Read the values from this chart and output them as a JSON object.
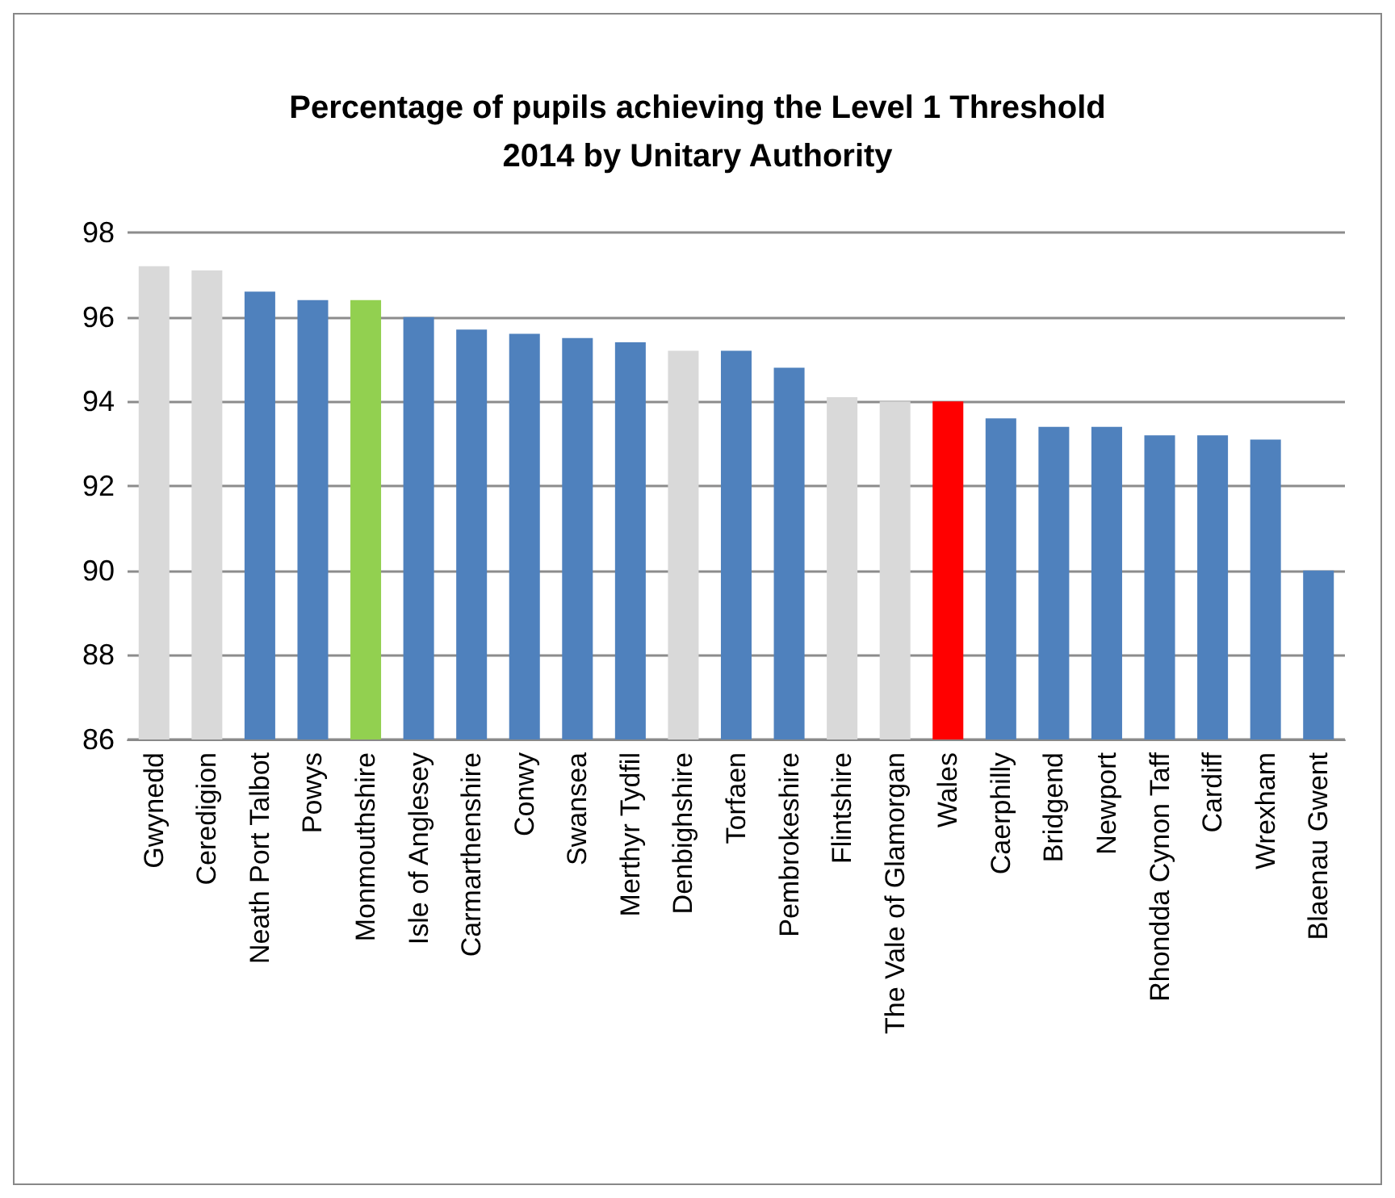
{
  "chart_data": {
    "type": "bar",
    "title": "Percentage of pupils achieving the Level 1 Threshold\n2014 by Unitary Authority",
    "categories": [
      "Gwynedd",
      "Ceredigion",
      "Neath Port Talbot",
      "Powys",
      "Monmouthshire",
      "Isle of Anglesey",
      "Carmarthenshire",
      "Conwy",
      "Swansea",
      "Merthyr Tydfil",
      "Denbighshire",
      "Torfaen",
      "Pembrokeshire",
      "Flintshire",
      "The Vale of Glamorgan",
      "Wales",
      "Caerphilly",
      "Bridgend",
      "Newport",
      "Rhondda Cynon Taff",
      "Cardiff",
      "Wrexham",
      "Blaenau Gwent"
    ],
    "values": [
      97.2,
      97.1,
      96.6,
      96.4,
      96.4,
      96.0,
      95.7,
      95.6,
      95.5,
      95.4,
      95.2,
      95.2,
      94.8,
      94.1,
      94.0,
      94.0,
      93.6,
      93.4,
      93.4,
      93.2,
      93.2,
      93.1,
      90.0
    ],
    "colors": [
      "#d9d9d9",
      "#d9d9d9",
      "#4f81bd",
      "#4f81bd",
      "#92d050",
      "#4f81bd",
      "#4f81bd",
      "#4f81bd",
      "#4f81bd",
      "#4f81bd",
      "#d9d9d9",
      "#4f81bd",
      "#4f81bd",
      "#d9d9d9",
      "#d9d9d9",
      "#ff0000",
      "#4f81bd",
      "#4f81bd",
      "#4f81bd",
      "#4f81bd",
      "#4f81bd",
      "#4f81bd",
      "#4f81bd"
    ],
    "ylim": [
      86,
      98
    ],
    "yticks": [
      86,
      88,
      90,
      92,
      94,
      96,
      98
    ],
    "grid": "y"
  }
}
